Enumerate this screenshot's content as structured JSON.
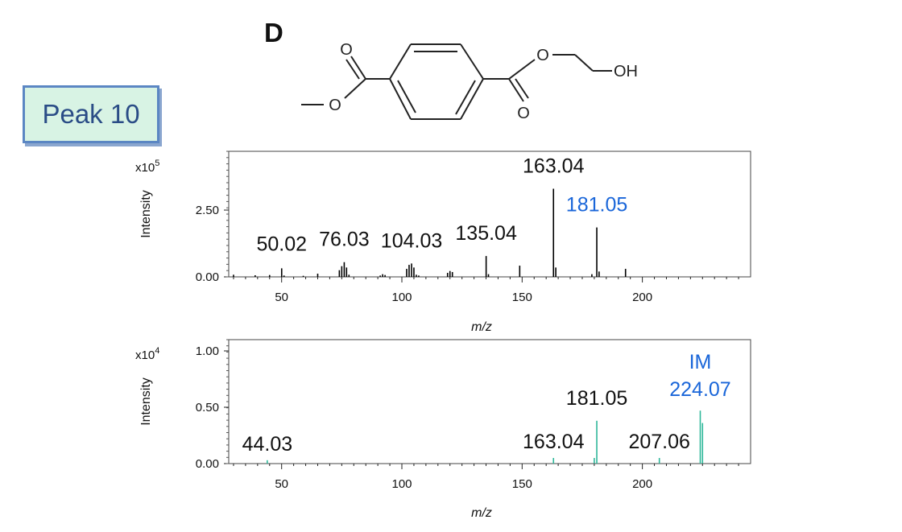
{
  "panel_letter": "D",
  "peak_label": "Peak 10",
  "molecule": {
    "carbonyl_left_O": "O",
    "ester_left_O": "O",
    "carbonyl_right_O": "O",
    "ester_right_O": "O",
    "hydroxyl": "OH"
  },
  "chart_data": [
    {
      "type": "bar",
      "xlabel": "m/z",
      "ylabel": "Intensity",
      "scale_label": "x10",
      "scale_exponent": "5",
      "xlim": [
        28,
        245
      ],
      "ylim": [
        0,
        4.7
      ],
      "xticks": [
        "50",
        "100",
        "150",
        "200"
      ],
      "yticks": [
        "0.00",
        "2.50"
      ],
      "bar_color": "#000000",
      "peaks": [
        {
          "mz": 30.0,
          "intensity": 0.08
        },
        {
          "mz": 39.0,
          "intensity": 0.06
        },
        {
          "mz": 45.0,
          "intensity": 0.07
        },
        {
          "mz": 50.02,
          "intensity": 0.32
        },
        {
          "mz": 51.0,
          "intensity": 0.05
        },
        {
          "mz": 59.0,
          "intensity": 0.04
        },
        {
          "mz": 65.0,
          "intensity": 0.12
        },
        {
          "mz": 74.0,
          "intensity": 0.25
        },
        {
          "mz": 75.0,
          "intensity": 0.4
        },
        {
          "mz": 76.03,
          "intensity": 0.55
        },
        {
          "mz": 77.0,
          "intensity": 0.35
        },
        {
          "mz": 78.0,
          "intensity": 0.08
        },
        {
          "mz": 91.0,
          "intensity": 0.05
        },
        {
          "mz": 92.0,
          "intensity": 0.1
        },
        {
          "mz": 93.0,
          "intensity": 0.07
        },
        {
          "mz": 102.0,
          "intensity": 0.3
        },
        {
          "mz": 103.0,
          "intensity": 0.45
        },
        {
          "mz": 104.03,
          "intensity": 0.5
        },
        {
          "mz": 105.0,
          "intensity": 0.35
        },
        {
          "mz": 106.0,
          "intensity": 0.08
        },
        {
          "mz": 107.0,
          "intensity": 0.05
        },
        {
          "mz": 119.0,
          "intensity": 0.15
        },
        {
          "mz": 120.0,
          "intensity": 0.22
        },
        {
          "mz": 121.0,
          "intensity": 0.18
        },
        {
          "mz": 135.04,
          "intensity": 0.78
        },
        {
          "mz": 136.0,
          "intensity": 0.1
        },
        {
          "mz": 149.0,
          "intensity": 0.42
        },
        {
          "mz": 163.04,
          "intensity": 3.3
        },
        {
          "mz": 164.0,
          "intensity": 0.35
        },
        {
          "mz": 179.0,
          "intensity": 0.1
        },
        {
          "mz": 181.05,
          "intensity": 1.85
        },
        {
          "mz": 182.0,
          "intensity": 0.2
        },
        {
          "mz": 193.0,
          "intensity": 0.3
        }
      ],
      "labels": [
        {
          "text": "50.02",
          "mz": 50.02,
          "intensity": 0.32,
          "color": "#111111"
        },
        {
          "text": "76.03",
          "mz": 76.03,
          "intensity": 0.55,
          "color": "#111111"
        },
        {
          "text": "104.03",
          "mz": 104.03,
          "intensity": 0.5,
          "color": "#111111"
        },
        {
          "text": "135.04",
          "mz": 135.04,
          "intensity": 0.78,
          "color": "#111111"
        },
        {
          "text": "163.04",
          "mz": 163.04,
          "intensity": 3.3,
          "color": "#111111"
        },
        {
          "text": "181.05",
          "mz": 181.05,
          "intensity": 1.85,
          "color": "#1a66d9"
        }
      ]
    },
    {
      "type": "bar",
      "xlabel": "m/z",
      "ylabel": "Intensity",
      "scale_label": "x10",
      "scale_exponent": "4",
      "xlim": [
        28,
        245
      ],
      "ylim": [
        0,
        1.1
      ],
      "xticks": [
        "50",
        "100",
        "150",
        "200"
      ],
      "yticks": [
        "0.00",
        "0.50",
        "1.00"
      ],
      "bar_color": "#2fb79a",
      "peaks": [
        {
          "mz": 44.03,
          "intensity": 0.03
        },
        {
          "mz": 163.04,
          "intensity": 0.05
        },
        {
          "mz": 180.0,
          "intensity": 0.05
        },
        {
          "mz": 181.05,
          "intensity": 0.38
        },
        {
          "mz": 207.06,
          "intensity": 0.05
        },
        {
          "mz": 224.07,
          "intensity": 0.47
        },
        {
          "mz": 225.0,
          "intensity": 0.36
        }
      ],
      "labels": [
        {
          "text": "44.03",
          "mz": 44.03,
          "intensity": 0.03,
          "color": "#111111"
        },
        {
          "text": "163.04",
          "mz": 163.04,
          "intensity": 0.05,
          "color": "#111111"
        },
        {
          "text": "181.05",
          "mz": 181.05,
          "intensity": 0.38,
          "color": "#111111"
        },
        {
          "text": "207.06",
          "mz": 207.06,
          "intensity": 0.05,
          "color": "#111111"
        },
        {
          "text": "224.07",
          "mz": 224.07,
          "intensity": 0.47,
          "color": "#1a66d9"
        },
        {
          "text": "IM",
          "mz": 224.07,
          "intensity": 0.47,
          "color": "#1a66d9"
        }
      ]
    }
  ]
}
